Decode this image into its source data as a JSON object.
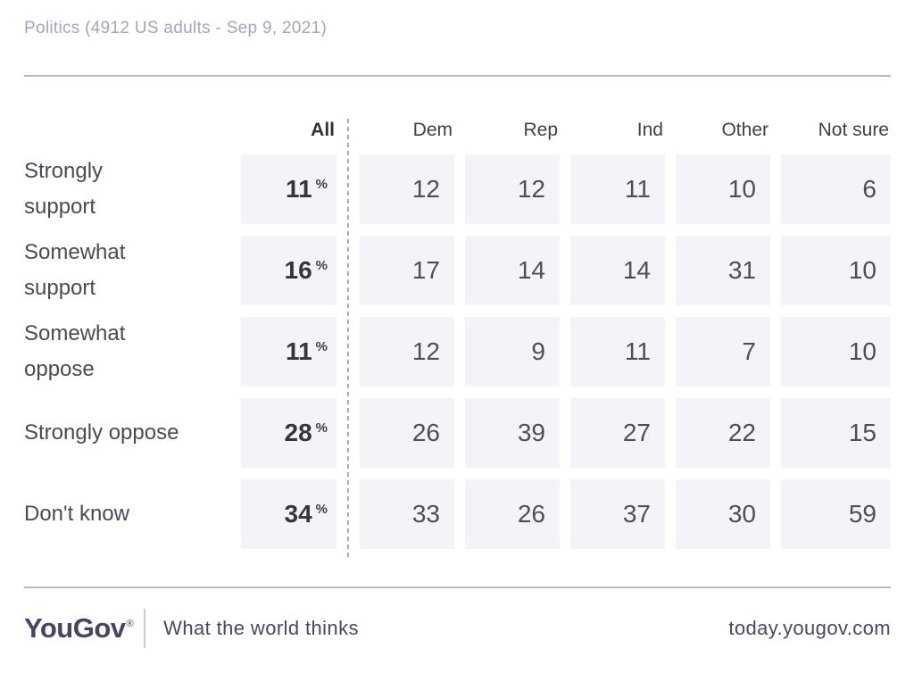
{
  "header": {
    "title": "Politics (4912 US adults - Sep 9, 2021)"
  },
  "table": {
    "columns": [
      "All",
      "Dem",
      "Rep",
      "Ind",
      "Other",
      "Not sure"
    ],
    "percent_symbol": "%",
    "rows": [
      {
        "label": "Strongly\nsupport",
        "all": "11",
        "values": [
          "12",
          "12",
          "11",
          "10",
          "6"
        ]
      },
      {
        "label": "Somewhat\nsupport",
        "all": "16",
        "values": [
          "17",
          "14",
          "14",
          "31",
          "10"
        ]
      },
      {
        "label": "Somewhat\noppose",
        "all": "11",
        "values": [
          "12",
          "9",
          "11",
          "7",
          "10"
        ]
      },
      {
        "label": "Strongly oppose",
        "all": "28",
        "values": [
          "26",
          "39",
          "27",
          "22",
          "15"
        ]
      },
      {
        "label": "Don't know",
        "all": "34",
        "values": [
          "33",
          "26",
          "37",
          "30",
          "59"
        ]
      }
    ]
  },
  "footer": {
    "logo": "YouGov",
    "registered_mark": "®",
    "tagline": "What the world thinks",
    "url": "today.yougov.com"
  },
  "colors": {
    "cell_background": "#f4f4f8",
    "number_text": "#4e4e56",
    "bold_number_text": "#35353c",
    "title_muted": "#a6a4bd",
    "divider": "#b8b6c8",
    "dashed_separator": "#a9a8c2",
    "footer_purple": "#494463"
  },
  "chart_data": {
    "type": "table",
    "title": "Politics (4912 US adults - Sep 9, 2021)",
    "units": "percent",
    "columns": [
      "All",
      "Dem",
      "Rep",
      "Ind",
      "Other",
      "Not sure"
    ],
    "categories": [
      "Strongly support",
      "Somewhat support",
      "Somewhat oppose",
      "Strongly oppose",
      "Don't know"
    ],
    "series": [
      {
        "name": "All",
        "values": [
          11,
          16,
          11,
          28,
          34
        ]
      },
      {
        "name": "Dem",
        "values": [
          12,
          17,
          12,
          26,
          33
        ]
      },
      {
        "name": "Rep",
        "values": [
          12,
          14,
          9,
          39,
          26
        ]
      },
      {
        "name": "Ind",
        "values": [
          11,
          14,
          11,
          27,
          37
        ]
      },
      {
        "name": "Other",
        "values": [
          10,
          31,
          7,
          22,
          30
        ]
      },
      {
        "name": "Not sure",
        "values": [
          6,
          10,
          10,
          15,
          59
        ]
      }
    ]
  }
}
